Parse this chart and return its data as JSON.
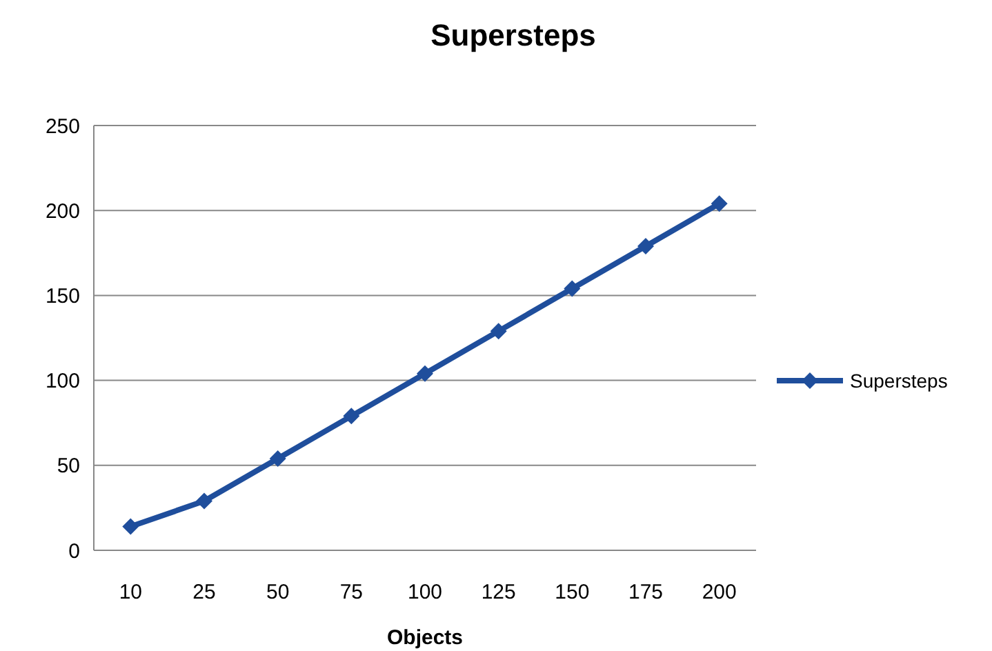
{
  "chart_data": {
    "type": "line",
    "title": "Supersteps",
    "xlabel": "Objects",
    "categories": [
      "10",
      "25",
      "50",
      "75",
      "100",
      "125",
      "150",
      "175",
      "200"
    ],
    "series": [
      {
        "name": "Supersteps",
        "color": "#1f4e9c",
        "values": [
          14,
          29,
          54,
          79,
          104,
          129,
          154,
          179,
          204
        ]
      }
    ],
    "ylim": [
      0,
      250
    ],
    "yticks": [
      0,
      50,
      100,
      150,
      200,
      250
    ],
    "grid": "y",
    "legend": "right",
    "marker": "diamond",
    "line_style": "solid"
  }
}
